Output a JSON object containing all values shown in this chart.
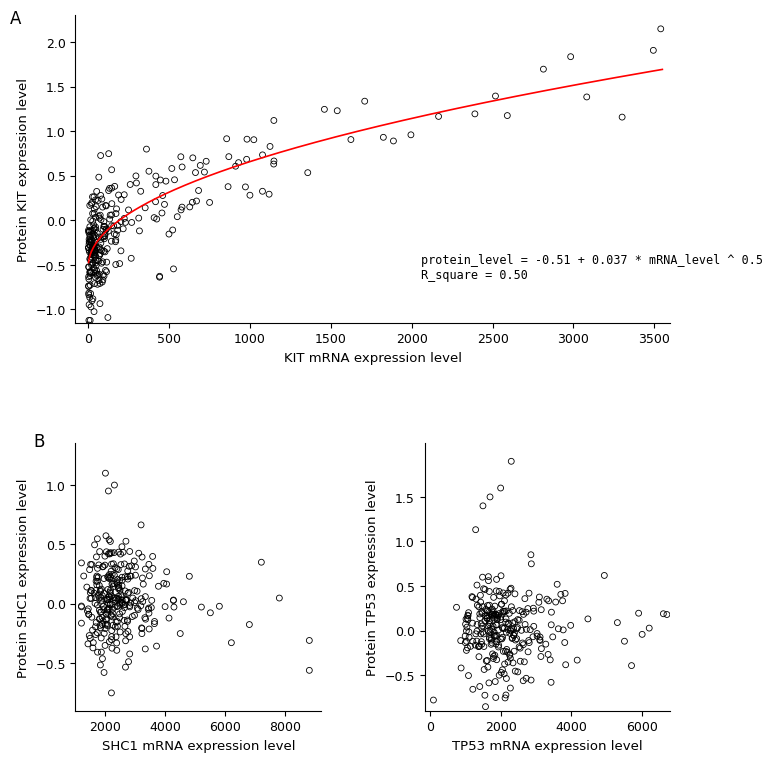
{
  "panel_A": {
    "title_label": "A",
    "xlabel": "KIT mRNA expression level",
    "ylabel": "Protein KIT expression level",
    "xlim": [
      -80,
      3600
    ],
    "ylim": [
      -1.15,
      2.3
    ],
    "xticks": [
      0,
      500,
      1000,
      1500,
      2000,
      2500,
      3000,
      3500
    ],
    "yticks": [
      -1.0,
      -0.5,
      0.0,
      0.5,
      1.0,
      1.5,
      2.0
    ],
    "equation_line1": "protein_level = -0.51 + 0.037 * mRNA_level ^ 0.5",
    "equation_line2": "R_square = 0.50",
    "fit_intercept": -0.51,
    "fit_coef": 0.037,
    "fit_power": 0.5,
    "marker_size": 18,
    "line_color": "#FF0000",
    "line_width": 1.2,
    "marker_color": "none",
    "marker_edge_color": "#000000",
    "marker_lw": 0.6
  },
  "panel_B_left": {
    "title_label": "B",
    "xlabel": "SHC1 mRNA expression level",
    "ylabel": "Protein SHC1 expression level",
    "xlim": [
      1000,
      9200
    ],
    "ylim": [
      -0.9,
      1.35
    ],
    "xticks": [
      2000,
      4000,
      6000,
      8000
    ],
    "yticks": [
      -0.5,
      0.0,
      0.5,
      1.0
    ],
    "marker_size": 18,
    "marker_color": "none",
    "marker_edge_color": "#000000",
    "marker_lw": 0.6
  },
  "panel_B_right": {
    "xlabel": "TP53 mRNA expression level",
    "ylabel": "Protein TP53 expression level",
    "xlim": [
      -150,
      6800
    ],
    "ylim": [
      -0.9,
      2.1
    ],
    "xticks": [
      0,
      2000,
      4000,
      6000
    ],
    "yticks": [
      -0.5,
      0.0,
      0.5,
      1.0,
      1.5
    ],
    "marker_size": 18,
    "marker_color": "none",
    "marker_edge_color": "#000000",
    "marker_lw": 0.6
  },
  "figure_bg": "#FFFFFF",
  "axes_bg": "#FFFFFF",
  "font_size_label": 9.5,
  "font_size_tick": 9,
  "font_size_annotation": 8.5,
  "font_size_panel_label": 12
}
